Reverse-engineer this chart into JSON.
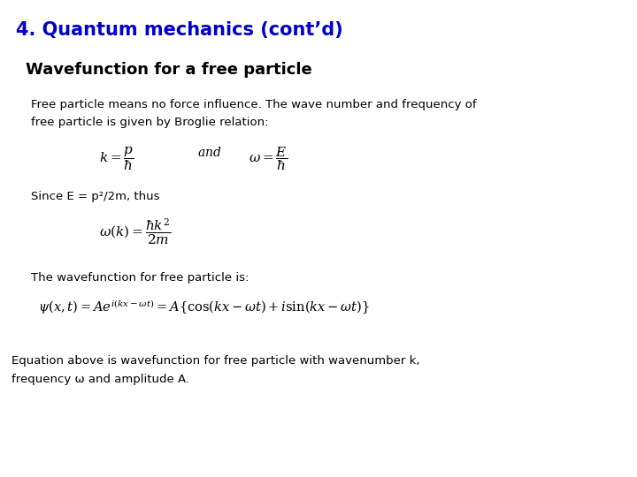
{
  "title": "4. Quantum mechanics (cont’d)",
  "subtitle": "Wavefunction for a free particle",
  "title_color": "#0000CC",
  "subtitle_color": "#000000",
  "body_color": "#000000",
  "background_color": "#FFFFFF",
  "para1_line1": "Free particle means no force influence. The wave number and frequency of",
  "para1_line2": "free particle is given by Broglie relation:",
  "para2": "Since E = p²/2m, thus",
  "para3": "The wavefunction for free particle is:",
  "para4_line1": "Equation above is wavefunction for free particle with wavenumber k,",
  "para4_line2": "frequency ω and amplitude A.",
  "title_fontsize": 15,
  "subtitle_fontsize": 13,
  "body_fontsize": 9.5,
  "eq_fontsize": 11
}
